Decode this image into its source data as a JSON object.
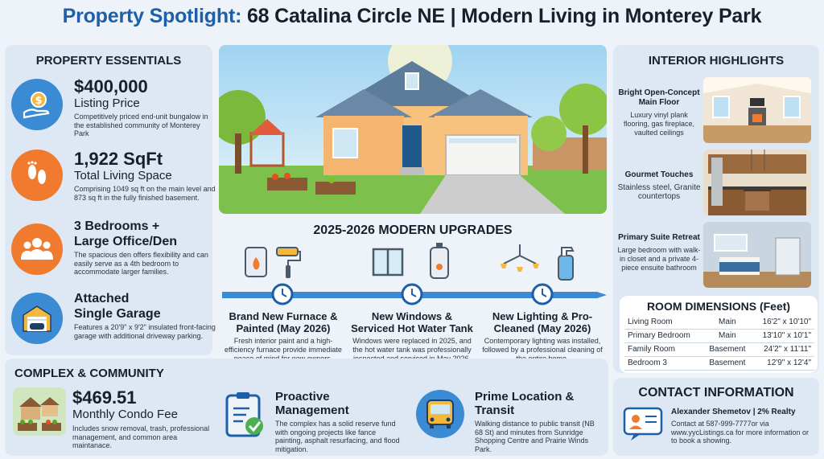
{
  "title": {
    "prefix": "Property Spotlight:",
    "rest": "68 Catalina Circle NE | Modern Living in Monterey Park"
  },
  "colors": {
    "accent_blue": "#1d5fa8",
    "orange": "#f07a2e",
    "light_blue": "#3a8bd4",
    "panel": "#dde8f4"
  },
  "essentials": {
    "heading": "PROPERTY ESSENTIALS",
    "items": [
      {
        "icon": "dollar-hand-icon",
        "big": "$400,000",
        "sub": "Listing Price",
        "desc": "Competitively priced end-unit bungalow in the established community of Monterey Park"
      },
      {
        "icon": "footprints-icon",
        "big": "1,922 SqFt",
        "sub": "Total Living Space",
        "desc": "Comprising 1049 sq ft on the main level and 873 sq ft in the fully finished basement."
      },
      {
        "icon": "people-icon",
        "big": "3 Bedrooms +",
        "sub": "Large Office/Den",
        "desc": "The spacious den offers flexibility and can easily serve as a 4th bedroom to accommodate larger families."
      },
      {
        "icon": "garage-icon",
        "big": "Attached",
        "sub": "Single Garage",
        "desc": "Features a 20'9\" x 9'2\" insulated front-facing garage with additional driveway parking."
      }
    ]
  },
  "upgrades": {
    "heading": "2025-2026 MODERN UPGRADES",
    "items": [
      {
        "title": "Brand New Furnace & Painted (May 2026)",
        "desc": "Fresh interior paint and a high-efficiency furnace provide immediate peace of mind for new owners."
      },
      {
        "title": "New Windows & Serviced Hot Water Tank",
        "desc": "Windows were replaced in 2025, and the hot water tank was professionally inspected and serviced in May 2026."
      },
      {
        "title": "New Lighting & Pro-Cleaned (May 2026)",
        "desc": "Contemporary lighting was installed, followed by a professional cleaning of the entire home."
      }
    ]
  },
  "interior": {
    "heading": "INTERIOR HIGHLIGHTS",
    "items": [
      {
        "title": "Bright Open-Concept Main Floor",
        "desc": "Luxury vinyl plank flooring, gas fireplace, vaulted ceilings"
      },
      {
        "title": "Gourmet Touches",
        "desc": "Stainless steel, Granite countertops"
      },
      {
        "title": "Primary Suite Retreat",
        "desc": "Large bedroom with walk-in closet and a private 4-piece ensuite bathroom"
      }
    ]
  },
  "dimensions": {
    "heading": "ROOM DIMENSIONS (Feet)",
    "rows": [
      {
        "room": "Living Room",
        "level": "Main",
        "size": "16'2\" x 10'10\""
      },
      {
        "room": "Primary Bedroom",
        "level": "Main",
        "size": "13'10\" x 10'1\""
      },
      {
        "room": "Family Room",
        "level": "Basement",
        "size": "24'2\" x 11'11\""
      },
      {
        "room": "Bedroom 3",
        "level": "Basement",
        "size": "12'9\" x 12'4\""
      }
    ]
  },
  "community": {
    "heading": "COMPLEX & COMMUNITY",
    "fee": {
      "big": "$469.51",
      "sub": "Monthly Condo Fee",
      "desc": "Includes snow removal, trash, professional management, and common area maintanace."
    },
    "management": {
      "title": "Proactive Management",
      "desc": "The complex has a solid reserve fund with ongoing projects like fance painting, asphalt resurfacing, and flood mitigation."
    },
    "location": {
      "title": "Prime Location & Transit",
      "desc": "Walking distance to public transit (NB 68 St) and minutes from Sunridge Shopping Centre and Prairie Winds Park."
    }
  },
  "contact": {
    "heading": "CONTACT INFORMATION",
    "name": "Alexander Shemetov | 2% Realty",
    "details": "Contact at 587-999-7777or via www.yycListings.ca for more information or to book a showing."
  }
}
